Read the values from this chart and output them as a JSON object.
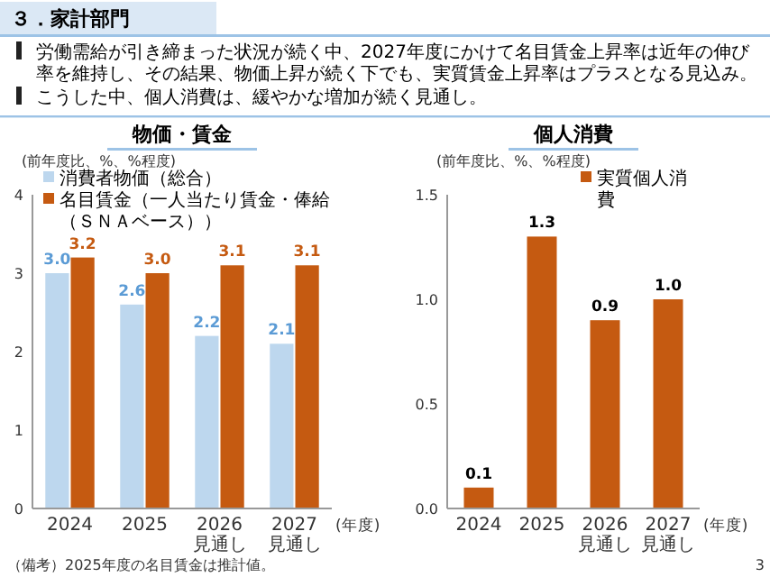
{
  "chart_data": [
    {
      "type": "bar",
      "title": "物価・賃金",
      "ylabel": "(前年度比、%、%程度)",
      "xlabel": "(年度)",
      "categories": [
        "2024",
        "2025",
        "2026見通し",
        "2027見通し"
      ],
      "series": [
        {
          "name": "消費者物価（総合）",
          "color": "#bdd7ee",
          "values": [
            3.0,
            2.6,
            2.2,
            2.1
          ],
          "value_labels": [
            "3.0",
            "2.6",
            "2.2",
            "2.1"
          ]
        },
        {
          "name": "名目賃金（一人当たり賃金・俸給（ＳＮＡベース））",
          "color": "#c55a11",
          "values": [
            3.2,
            3.0,
            3.1,
            3.1
          ],
          "value_labels": [
            "3.2",
            "3.0",
            "3.1",
            "3.1"
          ]
        }
      ],
      "ylim": [
        0,
        4
      ],
      "yticks": [
        0,
        1,
        2,
        3,
        4
      ],
      "legend": "top left",
      "annotations": [
        "３．家計部門",
        "労働需給が引き締まった状況が続く中、2027年度にかけて名目賃金上昇率は近年の伸び率を維持し、その結果、物価上昇が続く下でも、実質賃金上昇率はプラスとなる見込み。",
        "こうした中、個人消費は、緩やかな増加が続く見通し。",
        "（備考）2025年度の名目賃金は推計値。"
      ]
    },
    {
      "type": "bar",
      "title": "個人消費",
      "ylabel": "(前年度比、%、%程度)",
      "xlabel": "(年度)",
      "categories": [
        "2024",
        "2025",
        "2026見通し",
        "2027見通し"
      ],
      "series": [
        {
          "name": "実質個人消費",
          "color": "#c55a11",
          "values": [
            0.1,
            1.3,
            0.9,
            1.0
          ],
          "value_labels": [
            "0.1",
            "1.3",
            "0.9",
            "1.0"
          ]
        }
      ],
      "ylim": [
        0,
        1.5
      ],
      "yticks": [
        {
          "value": 0,
          "label": "0.0"
        },
        {
          "value": 0.5,
          "label": "0.5"
        },
        {
          "value": 1,
          "label": "1.0"
        },
        {
          "value": 1.5,
          "label": "1.5"
        }
      ],
      "legend": "top right",
      "annotations": [
        "3"
      ]
    }
  ]
}
